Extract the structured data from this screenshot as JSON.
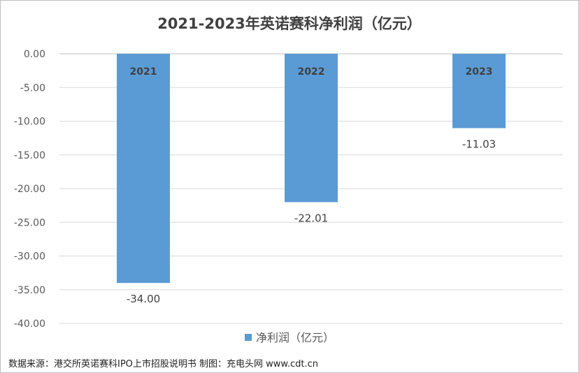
{
  "chart_data": {
    "type": "bar",
    "title": "2021-2023年英诺赛科净利润（亿元）",
    "categories": [
      "2021",
      "2022",
      "2023"
    ],
    "series": [
      {
        "name": "净利润（亿元）",
        "values": [
          -34.0,
          -22.01,
          -11.03
        ]
      }
    ],
    "data_labels": [
      "-34.00",
      "-22.01",
      "-11.03"
    ],
    "y_ticks": [
      "0.00",
      "-5.00",
      "-10.00",
      "-15.00",
      "-20.00",
      "-25.00",
      "-30.00",
      "-35.00",
      "-40.00"
    ],
    "ylim": [
      -40,
      0
    ],
    "grid": true,
    "legend_position": "bottom",
    "bar_color": "#5b9bd5"
  },
  "source_note": "数据来源：港交所英诺赛科IPO上市招股说明书 制图：充电头网 www.cdt.cn"
}
